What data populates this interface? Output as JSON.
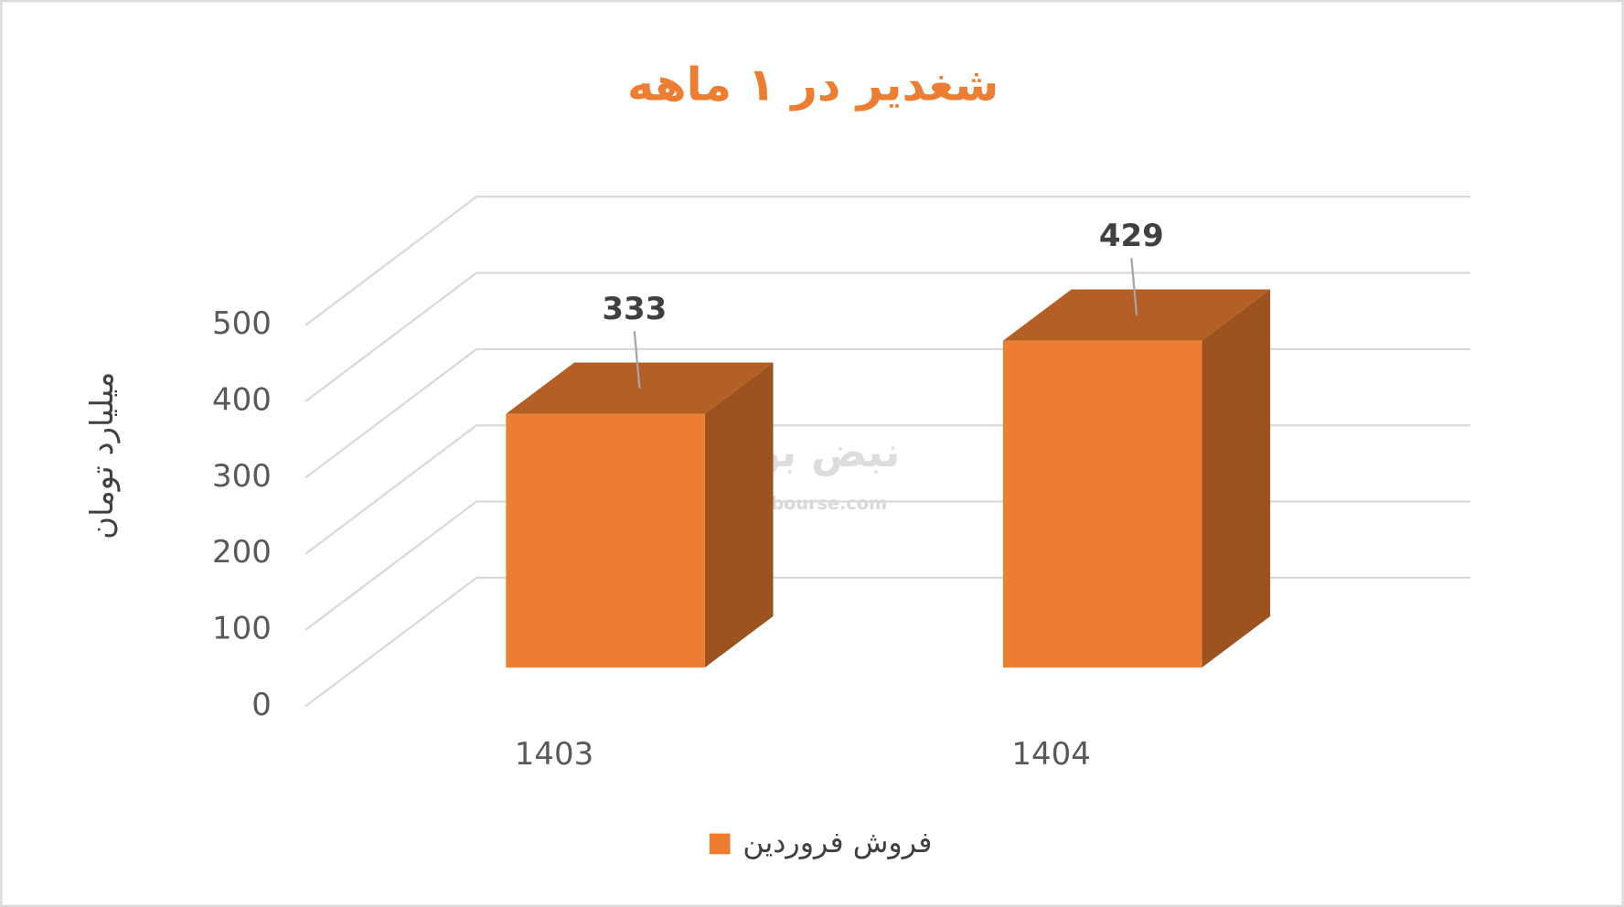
{
  "chart_data": {
    "type": "bar3d",
    "title": "شغدیر در ۱ ماهه",
    "y_label": "میلیارد تومان",
    "categories": [
      "1403",
      "1404"
    ],
    "series": [
      {
        "name": "فروش فروردین",
        "color": "#ed7d31",
        "values": [
          333,
          429
        ]
      }
    ],
    "ylim": [
      0,
      500
    ],
    "yticks": [
      0,
      100,
      200,
      300,
      400,
      500
    ],
    "grid": true,
    "legend": "bottom",
    "watermark": {
      "logo": "نبض بورس",
      "site": "nabzebourse.com"
    }
  }
}
